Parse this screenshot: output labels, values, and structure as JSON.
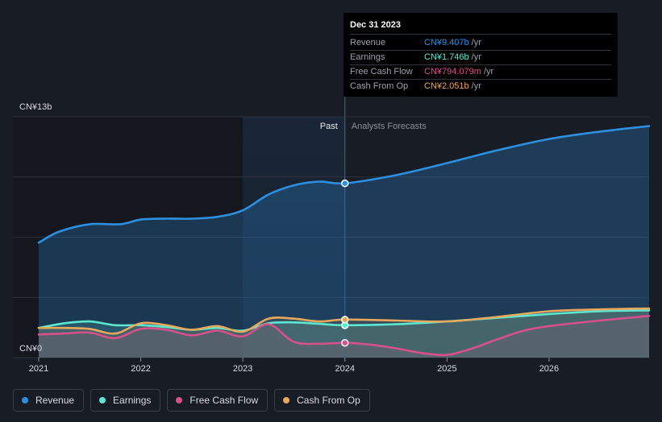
{
  "chart_data": {
    "type": "area",
    "currency_unit": "CN¥b",
    "y_axis": {
      "ylim": [
        0,
        13
      ],
      "top_label": "CN¥13b",
      "bottom_label": "CN¥0"
    },
    "x_axis": {
      "xlim": [
        2021,
        2026.98
      ],
      "ticks": [
        2021,
        2022,
        2023,
        2024,
        2025,
        2026
      ],
      "tick_labels": [
        "2021",
        "2022",
        "2023",
        "2024",
        "2025",
        "2026"
      ]
    },
    "divider_x": 2024,
    "forecast_shade_start": 2023,
    "region_labels": {
      "past": "Past",
      "forecast": "Analysts Forecasts"
    },
    "series": [
      {
        "name": "Revenue",
        "color": "#2d8fe0",
        "points": [
          [
            2021,
            6.2
          ],
          [
            2021.2,
            6.8
          ],
          [
            2021.5,
            7.2
          ],
          [
            2021.8,
            7.2
          ],
          [
            2022,
            7.45
          ],
          [
            2022.25,
            7.5
          ],
          [
            2022.5,
            7.5
          ],
          [
            2022.75,
            7.6
          ],
          [
            2023,
            7.95
          ],
          [
            2023.25,
            8.8
          ],
          [
            2023.5,
            9.3
          ],
          [
            2023.75,
            9.5
          ],
          [
            2024,
            9.407
          ],
          [
            2024.5,
            9.85
          ],
          [
            2025,
            10.5
          ],
          [
            2025.5,
            11.2
          ],
          [
            2026,
            11.8
          ],
          [
            2026.5,
            12.2
          ],
          [
            2026.98,
            12.5
          ]
        ],
        "marker": [
          2024,
          9.407
        ]
      },
      {
        "name": "Earnings",
        "color": "#5ce8d0",
        "points": [
          [
            2021,
            1.6
          ],
          [
            2021.25,
            1.85
          ],
          [
            2021.5,
            1.95
          ],
          [
            2021.75,
            1.75
          ],
          [
            2022,
            1.75
          ],
          [
            2022.25,
            1.65
          ],
          [
            2022.5,
            1.5
          ],
          [
            2022.75,
            1.6
          ],
          [
            2023,
            1.45
          ],
          [
            2023.25,
            1.85
          ],
          [
            2023.5,
            1.9
          ],
          [
            2023.75,
            1.82
          ],
          [
            2024,
            1.746
          ],
          [
            2024.5,
            1.8
          ],
          [
            2025,
            1.95
          ],
          [
            2025.5,
            2.15
          ],
          [
            2026,
            2.35
          ],
          [
            2026.5,
            2.5
          ],
          [
            2026.98,
            2.55
          ]
        ],
        "marker": [
          2024,
          1.746
        ]
      },
      {
        "name": "Free Cash Flow",
        "color": "#d6508a",
        "points": [
          [
            2021,
            1.25
          ],
          [
            2021.25,
            1.3
          ],
          [
            2021.5,
            1.35
          ],
          [
            2021.75,
            1.05
          ],
          [
            2022,
            1.55
          ],
          [
            2022.25,
            1.5
          ],
          [
            2022.5,
            1.2
          ],
          [
            2022.75,
            1.45
          ],
          [
            2023,
            1.15
          ],
          [
            2023.25,
            1.8
          ],
          [
            2023.5,
            0.85
          ],
          [
            2023.75,
            0.75
          ],
          [
            2024,
            0.794
          ],
          [
            2024.25,
            0.7
          ],
          [
            2024.5,
            0.5
          ],
          [
            2024.75,
            0.25
          ],
          [
            2025,
            0.15
          ],
          [
            2025.25,
            0.5
          ],
          [
            2025.5,
            1.0
          ],
          [
            2025.75,
            1.45
          ],
          [
            2026,
            1.7
          ],
          [
            2026.5,
            2.0
          ],
          [
            2026.98,
            2.25
          ]
        ],
        "marker": [
          2024,
          0.794
        ]
      },
      {
        "name": "Cash From Op",
        "color": "#e8a85c",
        "points": [
          [
            2021,
            1.6
          ],
          [
            2021.25,
            1.6
          ],
          [
            2021.5,
            1.55
          ],
          [
            2021.75,
            1.3
          ],
          [
            2022,
            1.85
          ],
          [
            2022.25,
            1.75
          ],
          [
            2022.5,
            1.5
          ],
          [
            2022.75,
            1.7
          ],
          [
            2023,
            1.4
          ],
          [
            2023.25,
            2.1
          ],
          [
            2023.5,
            2.1
          ],
          [
            2023.75,
            1.95
          ],
          [
            2024,
            2.051
          ],
          [
            2024.5,
            2.0
          ],
          [
            2025,
            1.95
          ],
          [
            2025.5,
            2.2
          ],
          [
            2026,
            2.5
          ],
          [
            2026.5,
            2.6
          ],
          [
            2026.98,
            2.65
          ]
        ],
        "marker": [
          2024,
          2.051
        ]
      }
    ]
  },
  "tooltip": {
    "date": "Dec 31 2023",
    "unit": "/yr",
    "rows": [
      {
        "label": "Revenue",
        "value": "CN¥9.407b",
        "color": "#2d8fe0"
      },
      {
        "label": "Earnings",
        "value": "CN¥1.746b",
        "color": "#5ce8d0"
      },
      {
        "label": "Free Cash Flow",
        "value": "CN¥794.079m",
        "color": "#d6508a"
      },
      {
        "label": "Cash From Op",
        "value": "CN¥2.051b",
        "color": "#e8a85c"
      }
    ]
  },
  "legend": [
    {
      "label": "Revenue",
      "color": "#2d8fe0"
    },
    {
      "label": "Earnings",
      "color": "#5ce8d0"
    },
    {
      "label": "Free Cash Flow",
      "color": "#d6508a"
    },
    {
      "label": "Cash From Op",
      "color": "#e8a85c"
    }
  ]
}
